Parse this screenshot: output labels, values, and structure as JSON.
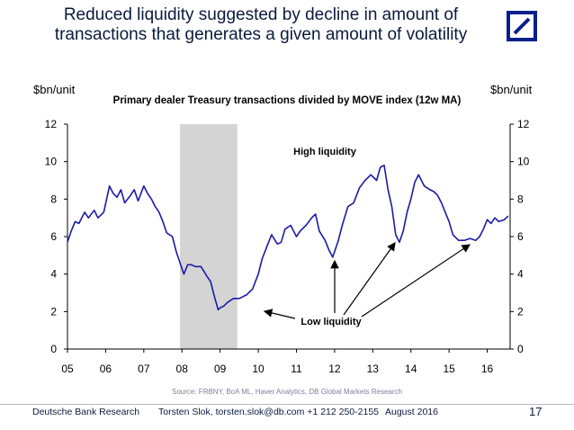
{
  "slide": {
    "title_line1": "Reduced liquidity suggested by decline in amount of",
    "title_line2": "transactions that generates a given amount of volatility",
    "footer_org": "Deutsche Bank Research",
    "footer_author": "Torsten Slok, torsten.slok@db.com  +1 212 250-2155",
    "footer_date": "August 2016",
    "page_number": "17",
    "source": "Source: FRBNY, BoA ML, Haver Analytics, DB Global Markets Research",
    "unit_left": "$bn/unit",
    "unit_right": "$bn/unit"
  },
  "colors": {
    "series": "#1a1aa8",
    "shading": "#d4d4d4",
    "logo": "#0b1f8c"
  },
  "chart_data": {
    "type": "line",
    "title": "Primary dealer Treasury transactions divided by MOVE index (12w MA)",
    "xlabel": "",
    "ylabel": "$bn/unit",
    "ylim": [
      0,
      12
    ],
    "xlim": [
      2005.0,
      2016.6
    ],
    "yticks": [
      0,
      2,
      4,
      6,
      8,
      10,
      12
    ],
    "xtick_values": [
      2005,
      2006,
      2007,
      2008,
      2009,
      2010,
      2011,
      2012,
      2013,
      2014,
      2015,
      2016
    ],
    "xtick_labels": [
      "05",
      "06",
      "07",
      "08",
      "09",
      "10",
      "11",
      "12",
      "13",
      "14",
      "15",
      "16"
    ],
    "shaded_range": [
      2007.95,
      2009.45
    ],
    "annotations": {
      "high": "High liquidity",
      "low": "Low liquidity"
    },
    "series": [
      {
        "name": "Primary dealer Treasury transactions / MOVE (12w MA)",
        "x": [
          2005.0,
          2005.1,
          2005.2,
          2005.3,
          2005.45,
          2005.55,
          2005.7,
          2005.8,
          2005.95,
          2006.1,
          2006.2,
          2006.3,
          2006.4,
          2006.5,
          2006.65,
          2006.75,
          2006.85,
          2007.0,
          2007.1,
          2007.2,
          2007.3,
          2007.4,
          2007.5,
          2007.6,
          2007.75,
          2007.85,
          2007.95,
          2008.05,
          2008.15,
          2008.25,
          2008.35,
          2008.5,
          2008.65,
          2008.75,
          2008.85,
          2008.95,
          2009.0,
          2009.1,
          2009.2,
          2009.35,
          2009.5,
          2009.6,
          2009.7,
          2009.85,
          2010.0,
          2010.1,
          2010.25,
          2010.35,
          2010.5,
          2010.6,
          2010.7,
          2010.85,
          2011.0,
          2011.1,
          2011.25,
          2011.4,
          2011.5,
          2011.6,
          2011.75,
          2011.85,
          2011.95,
          2012.1,
          2012.2,
          2012.35,
          2012.5,
          2012.65,
          2012.8,
          2012.95,
          2013.1,
          2013.2,
          2013.3,
          2013.4,
          2013.5,
          2013.6,
          2013.7,
          2013.8,
          2013.9,
          2014.0,
          2014.1,
          2014.2,
          2014.35,
          2014.5,
          2014.6,
          2014.7,
          2014.8,
          2014.9,
          2015.0,
          2015.1,
          2015.25,
          2015.4,
          2015.55,
          2015.7,
          2015.8,
          2015.9,
          2016.0,
          2016.1,
          2016.2,
          2016.3,
          2016.45,
          2016.55
        ],
        "y": [
          5.7,
          6.3,
          6.8,
          6.7,
          7.3,
          7.0,
          7.4,
          7.0,
          7.3,
          8.7,
          8.3,
          8.1,
          8.5,
          7.8,
          8.2,
          8.5,
          7.9,
          8.7,
          8.3,
          8.0,
          7.6,
          7.3,
          6.8,
          6.2,
          6.0,
          5.2,
          4.6,
          4.0,
          4.5,
          4.5,
          4.4,
          4.4,
          3.9,
          3.6,
          2.8,
          2.1,
          2.2,
          2.3,
          2.5,
          2.7,
          2.7,
          2.8,
          2.9,
          3.2,
          4.0,
          4.8,
          5.6,
          6.1,
          5.6,
          5.7,
          6.4,
          6.6,
          6.0,
          6.3,
          6.6,
          7.0,
          7.2,
          6.3,
          5.8,
          5.3,
          4.9,
          5.8,
          6.6,
          7.6,
          7.8,
          8.6,
          9.0,
          9.3,
          9.0,
          9.7,
          9.8,
          8.5,
          7.6,
          6.1,
          5.7,
          6.3,
          7.3,
          8.0,
          8.9,
          9.3,
          8.7,
          8.5,
          8.4,
          8.2,
          7.8,
          7.3,
          6.8,
          6.1,
          5.8,
          5.8,
          5.9,
          5.8,
          6.0,
          6.4,
          6.9,
          6.7,
          7.0,
          6.8,
          6.9,
          7.1
        ]
      }
    ]
  }
}
